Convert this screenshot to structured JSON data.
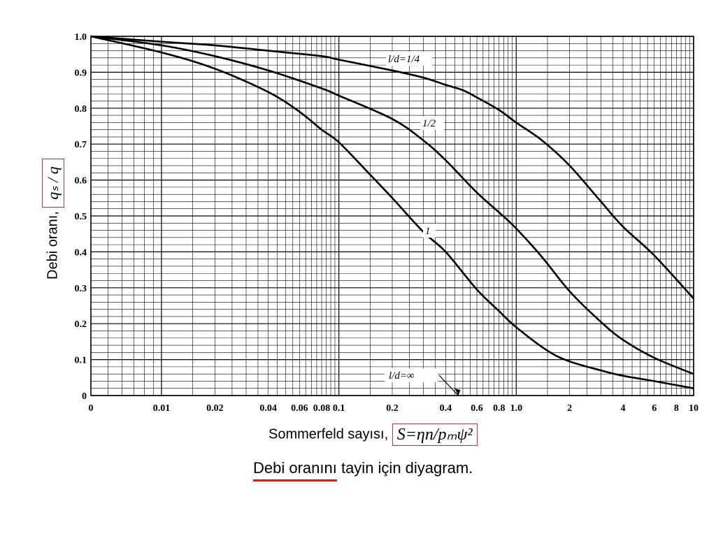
{
  "chart_data": {
    "type": "line",
    "xscale": "log",
    "xlim": [
      0.004,
      10
    ],
    "ylim": [
      0,
      1.0
    ],
    "xlabel_text": "Sommerfeld sayısı,",
    "xlabel_formula": "S=ηn/pₘψ²",
    "ylabel_text": "Debi oranı,",
    "ylabel_formula": "qₛ / q",
    "x_ticks": [
      {
        "label": "0",
        "value": 0.004
      },
      {
        "label": "0.01",
        "value": 0.01
      },
      {
        "label": "0.02",
        "value": 0.02
      },
      {
        "label": "0.04",
        "value": 0.04
      },
      {
        "label": "0.06",
        "value": 0.06
      },
      {
        "label": "0.08",
        "value": 0.08
      },
      {
        "label": "0.1",
        "value": 0.1
      },
      {
        "label": "0.2",
        "value": 0.2
      },
      {
        "label": "0.4",
        "value": 0.4
      },
      {
        "label": "0.6",
        "value": 0.6
      },
      {
        "label": "0.8",
        "value": 0.8
      },
      {
        "label": "1.0",
        "value": 1.0
      },
      {
        "label": "2",
        "value": 2
      },
      {
        "label": "4",
        "value": 4
      },
      {
        "label": "6",
        "value": 6
      },
      {
        "label": "8",
        "value": 8
      },
      {
        "label": "10",
        "value": 10
      }
    ],
    "y_ticks": [
      "0",
      "0.1",
      "0.2",
      "0.3",
      "0.4",
      "0.5",
      "0.6",
      "0.7",
      "0.8",
      "0.9",
      "1.0"
    ],
    "series": [
      {
        "name": "l/d=1/4",
        "x": [
          0.004,
          0.01,
          0.02,
          0.04,
          0.08,
          0.1,
          0.2,
          0.3,
          0.4,
          0.5,
          0.6,
          0.8,
          1.0,
          1.4,
          2,
          3,
          4,
          6,
          10
        ],
        "y": [
          1.0,
          0.985,
          0.975,
          0.96,
          0.945,
          0.935,
          0.905,
          0.885,
          0.865,
          0.85,
          0.83,
          0.795,
          0.76,
          0.71,
          0.64,
          0.54,
          0.47,
          0.39,
          0.27
        ]
      },
      {
        "name": "1/2",
        "x": [
          0.004,
          0.01,
          0.02,
          0.04,
          0.08,
          0.1,
          0.2,
          0.3,
          0.4,
          0.6,
          0.8,
          1.0,
          1.4,
          2,
          3,
          4,
          6,
          10
        ],
        "y": [
          1.0,
          0.975,
          0.945,
          0.905,
          0.855,
          0.835,
          0.77,
          0.71,
          0.655,
          0.565,
          0.51,
          0.465,
          0.385,
          0.29,
          0.205,
          0.155,
          0.105,
          0.06
        ]
      },
      {
        "name": "1",
        "x": [
          0.004,
          0.01,
          0.02,
          0.04,
          0.06,
          0.08,
          0.1,
          0.15,
          0.2,
          0.3,
          0.4,
          0.6,
          0.8,
          1.0,
          1.5,
          2,
          3,
          4,
          6,
          10
        ],
        "y": [
          1.0,
          0.955,
          0.91,
          0.845,
          0.79,
          0.74,
          0.705,
          0.615,
          0.55,
          0.455,
          0.4,
          0.295,
          0.235,
          0.19,
          0.125,
          0.095,
          0.07,
          0.055,
          0.04,
          0.02
        ]
      }
    ],
    "annotation_inf": {
      "label": "l/d=∞",
      "x": 0.48
    }
  },
  "caption": "Debi oranını  tayin için diyagram."
}
